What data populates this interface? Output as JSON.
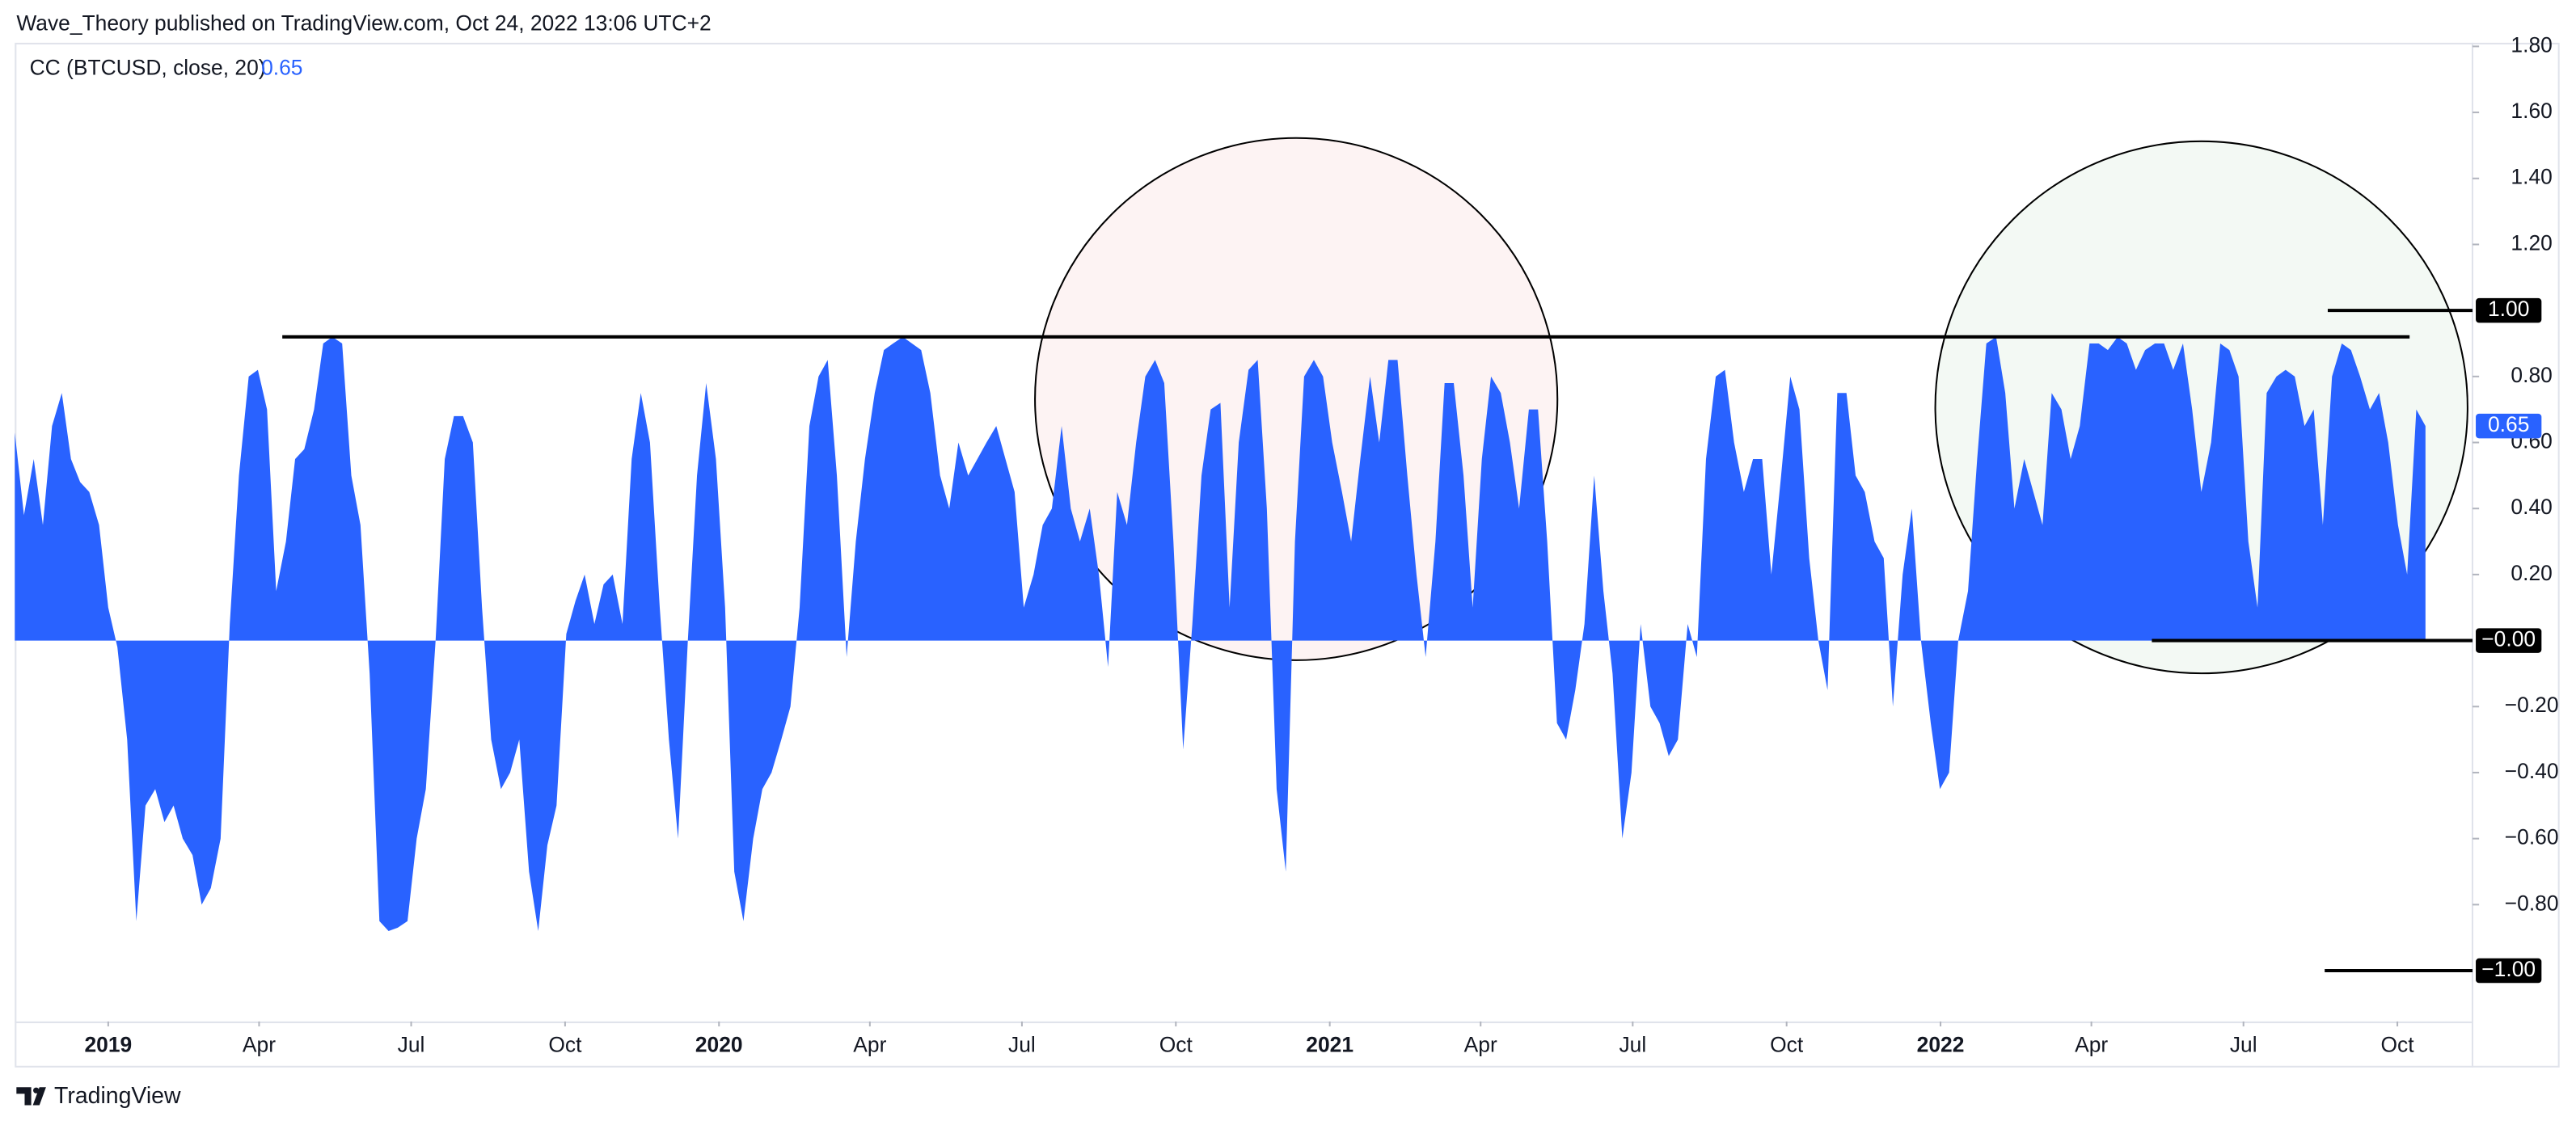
{
  "header": "Wave_Theory published on TradingView.com, Oct 24, 2022 13:06 UTC+2",
  "footer": "TradingView",
  "chart_data": {
    "type": "area",
    "legend_title": "CC (BTCUSD, close, 20)",
    "last_value": 0.65,
    "color": "#2962ff",
    "x": [
      2018.847,
      2018.862,
      2018.878,
      2018.893,
      2018.908,
      2018.924,
      2018.939,
      2018.954,
      2018.969,
      2018.985,
      2019.0,
      2019.015,
      2019.031,
      2019.046,
      2019.061,
      2019.077,
      2019.092,
      2019.107,
      2019.122,
      2019.138,
      2019.153,
      2019.168,
      2019.184,
      2019.199,
      2019.214,
      2019.23,
      2019.245,
      2019.26,
      2019.275,
      2019.291,
      2019.306,
      2019.321,
      2019.337,
      2019.352,
      2019.367,
      2019.383,
      2019.398,
      2019.413,
      2019.428,
      2019.444,
      2019.459,
      2019.474,
      2019.49,
      2019.505,
      2019.52,
      2019.536,
      2019.551,
      2019.566,
      2019.581,
      2019.597,
      2019.612,
      2019.627,
      2019.643,
      2019.658,
      2019.673,
      2019.689,
      2019.704,
      2019.719,
      2019.734,
      2019.75,
      2019.765,
      2019.78,
      2019.796,
      2019.811,
      2019.826,
      2019.842,
      2019.857,
      2019.872,
      2019.887,
      2019.903,
      2019.918,
      2019.933,
      2019.949,
      2019.964,
      2019.979,
      2019.995,
      2020.01,
      2020.025,
      2020.04,
      2020.056,
      2020.071,
      2020.086,
      2020.102,
      2020.117,
      2020.132,
      2020.148,
      2020.163,
      2020.178,
      2020.193,
      2020.209,
      2020.224,
      2020.239,
      2020.255,
      2020.27,
      2020.285,
      2020.301,
      2020.316,
      2020.331,
      2020.346,
      2020.362,
      2020.377,
      2020.392,
      2020.408,
      2020.423,
      2020.438,
      2020.454,
      2020.469,
      2020.484,
      2020.499,
      2020.515,
      2020.53,
      2020.545,
      2020.561,
      2020.576,
      2020.591,
      2020.607,
      2020.622,
      2020.637,
      2020.652,
      2020.668,
      2020.683,
      2020.698,
      2020.714,
      2020.729,
      2020.744,
      2020.76,
      2020.775,
      2020.79,
      2020.805,
      2020.821,
      2020.836,
      2020.851,
      2020.867,
      2020.882,
      2020.897,
      2020.913,
      2020.928,
      2020.943,
      2020.958,
      2020.974,
      2020.989,
      2021.004,
      2021.02,
      2021.035,
      2021.05,
      2021.066,
      2021.081,
      2021.096,
      2021.111,
      2021.127,
      2021.142,
      2021.157,
      2021.173,
      2021.188,
      2021.203,
      2021.219,
      2021.234,
      2021.249,
      2021.264,
      2021.28,
      2021.295,
      2021.31,
      2021.326,
      2021.341,
      2021.356,
      2021.372,
      2021.387,
      2021.402,
      2021.417,
      2021.433,
      2021.448,
      2021.463,
      2021.479,
      2021.494,
      2021.509,
      2021.525,
      2021.54,
      2021.555,
      2021.57,
      2021.586,
      2021.601,
      2021.616,
      2021.632,
      2021.647,
      2021.662,
      2021.678,
      2021.693,
      2021.708,
      2021.723,
      2021.739,
      2021.754,
      2021.769,
      2021.785,
      2021.8,
      2021.815,
      2021.831,
      2021.846,
      2021.861,
      2021.876,
      2021.892,
      2021.907,
      2021.922,
      2021.938,
      2021.953,
      2021.968,
      2021.984,
      2021.999,
      2022.014,
      2022.029,
      2022.045,
      2022.06,
      2022.075,
      2022.091,
      2022.106,
      2022.121,
      2022.137,
      2022.152,
      2022.167,
      2022.182,
      2022.198,
      2022.213,
      2022.228,
      2022.244,
      2022.259,
      2022.274,
      2022.29,
      2022.305,
      2022.32,
      2022.335,
      2022.351,
      2022.366,
      2022.381,
      2022.397,
      2022.412,
      2022.427,
      2022.443,
      2022.458,
      2022.473,
      2022.488,
      2022.504,
      2022.519,
      2022.534,
      2022.55,
      2022.565,
      2022.58,
      2022.596,
      2022.611,
      2022.626,
      2022.641,
      2022.657,
      2022.672,
      2022.687,
      2022.703,
      2022.718,
      2022.733,
      2022.749,
      2022.764,
      2022.779,
      2022.794
    ],
    "values": [
      0.63,
      0.38,
      0.55,
      0.35,
      0.65,
      0.75,
      0.55,
      0.48,
      0.45,
      0.35,
      0.1,
      -0.02,
      -0.3,
      -0.85,
      -0.5,
      -0.45,
      -0.55,
      -0.5,
      -0.6,
      -0.65,
      -0.8,
      -0.75,
      -0.6,
      0.05,
      0.5,
      0.8,
      0.82,
      0.7,
      0.15,
      0.3,
      0.55,
      0.58,
      0.7,
      0.9,
      0.92,
      0.9,
      0.5,
      0.35,
      -0.1,
      -0.85,
      -0.88,
      -0.87,
      -0.85,
      -0.6,
      -0.45,
      0.0,
      0.55,
      0.68,
      0.68,
      0.6,
      0.1,
      -0.3,
      -0.45,
      -0.4,
      -0.3,
      -0.7,
      -0.88,
      -0.62,
      -0.5,
      0.02,
      0.12,
      0.2,
      0.05,
      0.17,
      0.2,
      0.05,
      0.55,
      0.75,
      0.6,
      0.1,
      -0.3,
      -0.6,
      0.0,
      0.5,
      0.78,
      0.55,
      0.1,
      -0.7,
      -0.85,
      -0.6,
      -0.45,
      -0.4,
      -0.3,
      -0.2,
      0.1,
      0.65,
      0.8,
      0.85,
      0.5,
      -0.05,
      0.3,
      0.55,
      0.75,
      0.88,
      0.9,
      0.92,
      0.9,
      0.88,
      0.75,
      0.5,
      0.4,
      0.6,
      0.5,
      0.55,
      0.6,
      0.65,
      0.55,
      0.45,
      0.1,
      0.2,
      0.35,
      0.4,
      0.65,
      0.4,
      0.3,
      0.4,
      0.2,
      -0.08,
      0.45,
      0.35,
      0.6,
      0.8,
      0.85,
      0.78,
      0.3,
      -0.33,
      0.05,
      0.5,
      0.7,
      0.72,
      0.1,
      0.6,
      0.82,
      0.85,
      0.4,
      -0.45,
      -0.7,
      0.3,
      0.8,
      0.85,
      0.8,
      0.6,
      0.45,
      0.3,
      0.55,
      0.8,
      0.6,
      0.85,
      0.85,
      0.5,
      0.2,
      -0.05,
      0.3,
      0.78,
      0.78,
      0.5,
      0.1,
      0.55,
      0.8,
      0.75,
      0.6,
      0.4,
      0.7,
      0.7,
      0.3,
      -0.25,
      -0.3,
      -0.15,
      0.05,
      0.5,
      0.15,
      -0.1,
      -0.6,
      -0.4,
      0.05,
      -0.2,
      -0.25,
      -0.35,
      -0.3,
      0.05,
      -0.05,
      0.55,
      0.8,
      0.82,
      0.6,
      0.45,
      0.55,
      0.55,
      0.2,
      0.5,
      0.8,
      0.7,
      0.25,
      0.0,
      -0.15,
      0.75,
      0.75,
      0.5,
      0.45,
      0.3,
      0.25,
      -0.2,
      0.2,
      0.4,
      0.0,
      -0.25,
      -0.45,
      -0.4,
      0.0,
      0.15,
      0.55,
      0.9,
      0.92,
      0.75,
      0.4,
      0.55,
      0.45,
      0.35,
      0.75,
      0.7,
      0.55,
      0.65,
      0.9,
      0.9,
      0.88,
      0.92,
      0.9,
      0.82,
      0.88,
      0.9,
      0.9,
      0.82,
      0.9,
      0.7,
      0.45,
      0.6,
      0.9,
      0.88,
      0.8,
      0.3,
      0.1,
      0.75,
      0.8,
      0.82,
      0.8,
      0.65,
      0.7,
      0.35,
      0.8,
      0.9,
      0.88,
      0.8,
      0.7,
      0.75,
      0.6,
      0.35,
      0.2,
      0.7,
      0.65
    ],
    "xlim": [
      2018.847,
      2022.871
    ],
    "xticks": [
      {
        "value": 2019,
        "label": "2019"
      },
      {
        "value": 2019.247,
        "label": "Apr"
      },
      {
        "value": 2019.496,
        "label": "Jul"
      },
      {
        "value": 2019.748,
        "label": "Oct"
      },
      {
        "value": 2020,
        "label": "2020"
      },
      {
        "value": 2020.247,
        "label": "Apr"
      },
      {
        "value": 2020.496,
        "label": "Jul"
      },
      {
        "value": 2020.748,
        "label": "Oct"
      },
      {
        "value": 2021,
        "label": "2021"
      },
      {
        "value": 2021.247,
        "label": "Apr"
      },
      {
        "value": 2021.496,
        "label": "Jul"
      },
      {
        "value": 2021.748,
        "label": "Oct"
      },
      {
        "value": 2022,
        "label": "2022"
      },
      {
        "value": 2022.247,
        "label": "Apr"
      },
      {
        "value": 2022.496,
        "label": "Jul"
      },
      {
        "value": 2022.748,
        "label": "Oct"
      }
    ],
    "ylim": [
      -1.154,
      1.811
    ],
    "yticks": [
      {
        "value": 1.8,
        "label": "1.80"
      },
      {
        "value": 1.6,
        "label": "1.60"
      },
      {
        "value": 1.4,
        "label": "1.40"
      },
      {
        "value": 1.2,
        "label": "1.20"
      },
      {
        "value": 0.8,
        "label": "0.80"
      },
      {
        "value": 0.6,
        "label": "0.60"
      },
      {
        "value": 0.4,
        "label": "0.40"
      },
      {
        "value": 0.2,
        "label": "0.20"
      },
      {
        "value": -0.2,
        "label": "−0.20"
      },
      {
        "value": -0.4,
        "label": "−0.40"
      },
      {
        "value": -0.6,
        "label": "−0.60"
      },
      {
        "value": -0.8,
        "label": "−0.80"
      }
    ],
    "trend_line": {
      "value": 0.92,
      "x": [
        2019.285,
        2022.768
      ]
    },
    "horizontal_lines": [
      {
        "value": 1,
        "label": "1.00",
        "x": [
          2022.634,
          2022.871
        ]
      },
      {
        "value": 0,
        "label": "−0.00",
        "x": [
          2022.346,
          2022.871
        ]
      },
      {
        "value": -1,
        "label": "−1.00",
        "x": [
          2022.629,
          2022.871
        ]
      }
    ]
  }
}
